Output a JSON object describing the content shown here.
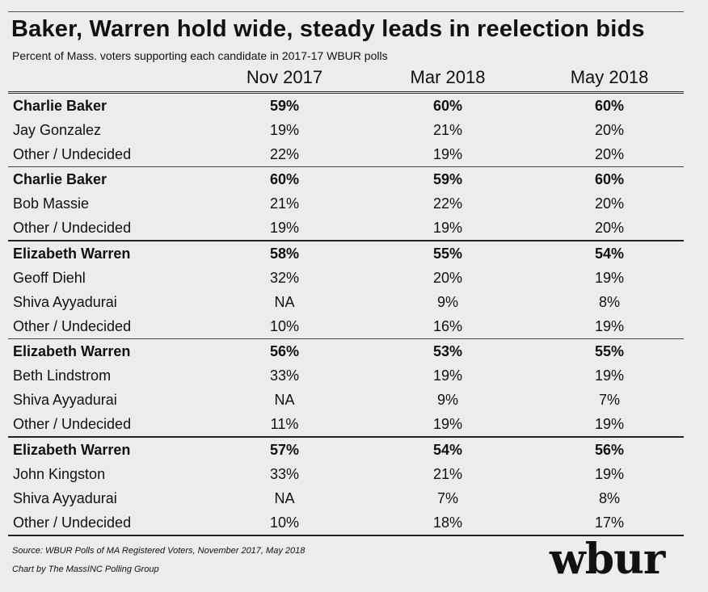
{
  "title": "Baker, Warren hold wide, steady leads in reelection bids",
  "subtitle": "Percent of Mass. voters supporting each candidate in 2017-17 WBUR polls",
  "columns": [
    "Nov 2017",
    "Mar 2018",
    "May 2018"
  ],
  "chart_data": {
    "type": "table",
    "columns": [
      "Nov 2017",
      "Mar 2018",
      "May 2018"
    ],
    "groups": [
      {
        "rows": [
          {
            "name": "Charlie Baker",
            "bold": true,
            "values": [
              "59%",
              "60%",
              "60%"
            ]
          },
          {
            "name": "Jay Gonzalez",
            "bold": false,
            "values": [
              "19%",
              "21%",
              "20%"
            ]
          },
          {
            "name": "Other / Undecided",
            "bold": false,
            "values": [
              "22%",
              "19%",
              "20%"
            ]
          }
        ]
      },
      {
        "rows": [
          {
            "name": "Charlie Baker",
            "bold": true,
            "values": [
              "60%",
              "59%",
              "60%"
            ]
          },
          {
            "name": "Bob Massie",
            "bold": false,
            "values": [
              "21%",
              "22%",
              "20%"
            ]
          },
          {
            "name": "Other / Undecided",
            "bold": false,
            "values": [
              "19%",
              "19%",
              "20%"
            ]
          }
        ]
      },
      {
        "rows": [
          {
            "name": "Elizabeth Warren",
            "bold": true,
            "values": [
              "58%",
              "55%",
              "54%"
            ]
          },
          {
            "name": "Geoff Diehl",
            "bold": false,
            "values": [
              "32%",
              "20%",
              "19%"
            ]
          },
          {
            "name": "Shiva Ayyadurai",
            "bold": false,
            "values": [
              "NA",
              "9%",
              "8%"
            ]
          },
          {
            "name": "Other / Undecided",
            "bold": false,
            "values": [
              "10%",
              "16%",
              "19%"
            ]
          }
        ]
      },
      {
        "rows": [
          {
            "name": "Elizabeth Warren",
            "bold": true,
            "values": [
              "56%",
              "53%",
              "55%"
            ]
          },
          {
            "name": "Beth Lindstrom",
            "bold": false,
            "values": [
              "33%",
              "19%",
              "19%"
            ]
          },
          {
            "name": "Shiva Ayyadurai",
            "bold": false,
            "values": [
              "NA",
              "9%",
              "7%"
            ]
          },
          {
            "name": "Other / Undecided",
            "bold": false,
            "values": [
              "11%",
              "19%",
              "19%"
            ]
          }
        ]
      },
      {
        "rows": [
          {
            "name": "Elizabeth Warren",
            "bold": true,
            "values": [
              "57%",
              "54%",
              "56%"
            ]
          },
          {
            "name": "John Kingston",
            "bold": false,
            "values": [
              "33%",
              "21%",
              "19%"
            ]
          },
          {
            "name": "Shiva Ayyadurai",
            "bold": false,
            "values": [
              "NA",
              "7%",
              "8%"
            ]
          },
          {
            "name": "Other / Undecided",
            "bold": false,
            "values": [
              "10%",
              "18%",
              "17%"
            ]
          }
        ]
      }
    ]
  },
  "footer": {
    "source": "Source: WBUR Polls of MA Registered Voters, November 2017, May 2018",
    "credit": "Chart by The MassINC Polling Group"
  },
  "logo": "wbur"
}
